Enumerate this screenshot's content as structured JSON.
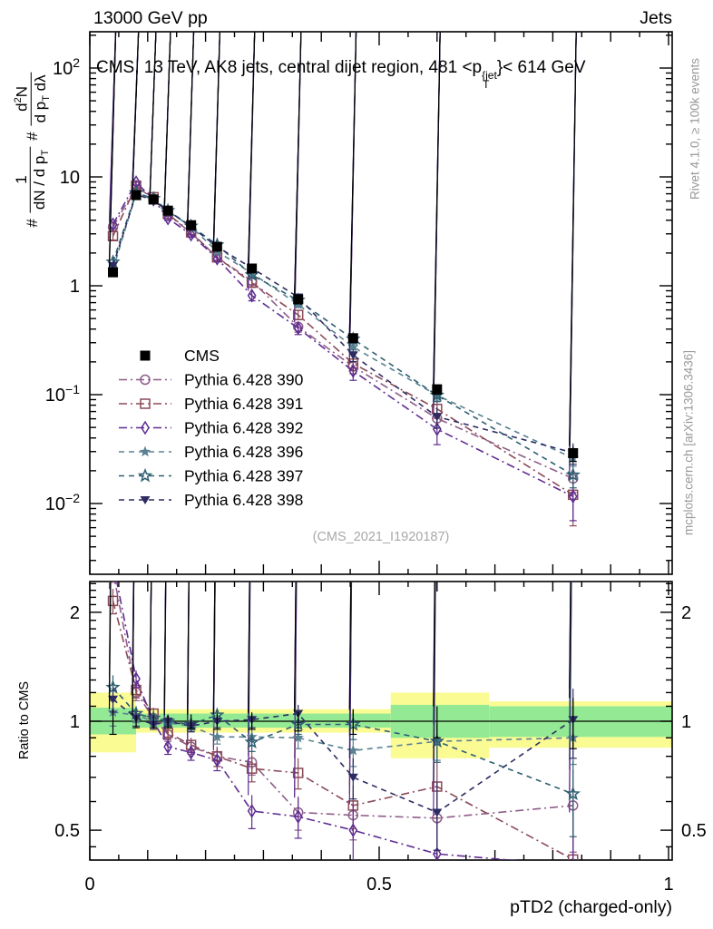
{
  "header": {
    "left": "13000 GeV pp",
    "right": "Jets"
  },
  "title": {
    "prefix": "CMS, 13 TeV, AK8 jets, central dijet region, 481 <p",
    "sup": "{jet",
    "sub": "T",
    "suffix": "}< 614 GeV"
  },
  "ylabel": {
    "hash1": "#",
    "f1_num": "1",
    "f1_den_a": "dN / d p",
    "f1_den_sub": "T",
    "hash2": "#",
    "f2_num_a": "d",
    "f2_num_sup": "2",
    "f2_num_b": "N",
    "f2_den_a": "d p",
    "f2_den_sub": "T",
    "f2_den_b": " dλ"
  },
  "labels": {
    "ratio_y": "Ratio to CMS",
    "x_axis": "pTD2 (charged-only)"
  },
  "notes": {
    "rivet": "Rivet 4.1.0, ≥ 100k events",
    "mcplots": "mcplots.cern.ch [arXiv:1306.3436]"
  },
  "watermark": "(CMS_2021_I1920187)",
  "colors": {
    "band_yellow": "#fbfb94",
    "band_green": "#94ea94",
    "frame": "#000000",
    "gray_text": "#999999"
  },
  "chart_data": {
    "type": "line",
    "title": "CMS, 13 TeV, AK8 jets, central dijet region, 481 < pT{jet} < 614 GeV",
    "xlabel": "pTD2 (charged-only)",
    "ylabel": "# 1/(dN/dpT) # d2N/(dpT dlambda)",
    "ratio_ylabel": "Ratio to CMS",
    "x_range": [
      0,
      1
    ],
    "main_y_log_range": [
      0.0022,
      215
    ],
    "ratio_y_log_range": [
      0.414,
      2.43
    ],
    "grid": false,
    "legend_position": "left-middle",
    "x": [
      0.04,
      0.08,
      0.11,
      0.135,
      0.175,
      0.22,
      0.28,
      0.36,
      0.455,
      0.6,
      0.835
    ],
    "cms": {
      "name": "CMS",
      "marker": "square-filled",
      "color": "#000000",
      "values": [
        1.33,
        6.8,
        6.2,
        4.9,
        3.6,
        2.28,
        1.44,
        0.75,
        0.33,
        0.112,
        0.029
      ],
      "err_rel": [
        0.08,
        0.04,
        0.04,
        0.04,
        0.045,
        0.05,
        0.05,
        0.06,
        0.08,
        0.1,
        0.16
      ]
    },
    "series": [
      {
        "name": "Pythia 6.428 390",
        "marker": "circle-open",
        "dash": "dashdot",
        "color": "#8e5d88",
        "ratio": [
          2.6,
          1.2,
          1.02,
          0.92,
          0.85,
          0.8,
          0.77,
          0.56,
          0.55,
          0.54,
          0.585
        ],
        "ratio_err": [
          0.18,
          0.06,
          0.04,
          0.04,
          0.04,
          0.05,
          0.06,
          0.06,
          0.08,
          0.1,
          0.15
        ]
      },
      {
        "name": "Pythia 6.428 391",
        "marker": "square-open",
        "dash": "dashdot",
        "color": "#8a4a58",
        "ratio": [
          2.15,
          1.22,
          1.05,
          0.93,
          0.86,
          0.8,
          0.74,
          0.72,
          0.585,
          0.66,
          0.415
        ],
        "ratio_err": [
          0.17,
          0.06,
          0.04,
          0.04,
          0.04,
          0.05,
          0.06,
          0.07,
          0.08,
          0.12,
          0.2
        ]
      },
      {
        "name": "Pythia 6.428 392",
        "marker": "diamond-open",
        "dash": "dashdot",
        "color": "#5f2d91",
        "ratio": [
          2.75,
          1.31,
          1.0,
          0.85,
          0.82,
          0.78,
          0.565,
          0.545,
          0.5,
          0.43,
          0.4
        ],
        "ratio_err": [
          0.2,
          0.07,
          0.04,
          0.04,
          0.04,
          0.05,
          0.06,
          0.07,
          0.09,
          0.12,
          0.16
        ]
      },
      {
        "name": "Pythia 6.428 396",
        "marker": "star-filled",
        "dash": "dashed",
        "color": "#5a8191",
        "ratio": [
          1.06,
          1.04,
          1.0,
          0.99,
          0.97,
          0.905,
          0.905,
          0.9,
          0.83,
          0.88,
          0.9
        ],
        "ratio_err": [
          0.09,
          0.05,
          0.03,
          0.03,
          0.035,
          0.04,
          0.05,
          0.06,
          0.08,
          0.1,
          0.14
        ]
      },
      {
        "name": "Pythia 6.428 397",
        "marker": "star-open",
        "dash": "dashed",
        "color": "#2e5f70",
        "ratio": [
          1.24,
          1.05,
          1.02,
          1.0,
          0.98,
          1.04,
          0.875,
          0.98,
          0.98,
          0.88,
          0.63
        ],
        "ratio_err": [
          0.1,
          0.05,
          0.035,
          0.03,
          0.035,
          0.045,
          0.05,
          0.06,
          0.09,
          0.11,
          0.15
        ]
      },
      {
        "name": "Pythia 6.428 398",
        "marker": "triangle-down-filled",
        "dash": "dashed",
        "color": "#2c2c62",
        "ratio": [
          1.15,
          1.02,
          0.98,
          1.0,
          0.97,
          1.0,
          1.01,
          1.05,
          0.7,
          0.56,
          1.01
        ],
        "ratio_err": [
          0.09,
          0.05,
          0.03,
          0.03,
          0.035,
          0.04,
          0.05,
          0.06,
          0.09,
          0.12,
          0.22
        ]
      }
    ],
    "bands": [
      {
        "x0": 0.0,
        "x1": 0.08,
        "yellow": [
          0.82,
          1.2
        ],
        "green": [
          0.92,
          1.09
        ]
      },
      {
        "x0": 0.08,
        "x1": 0.52,
        "yellow": [
          0.93,
          1.08
        ],
        "green": [
          0.96,
          1.05
        ]
      },
      {
        "x0": 0.52,
        "x1": 0.69,
        "yellow": [
          0.79,
          1.2
        ],
        "green": [
          0.9,
          1.11
        ]
      },
      {
        "x0": 0.69,
        "x1": 1.0,
        "yellow": [
          0.845,
          1.135
        ],
        "green": [
          0.905,
          1.1
        ]
      }
    ],
    "axes": {
      "x_ticks_labeled": [
        {
          "v": 0,
          "label": "0"
        },
        {
          "v": 0.5,
          "label": "0.5"
        },
        {
          "v": 1,
          "label": "1"
        }
      ],
      "main_y_ticks": [
        {
          "v": 100,
          "mant": "10",
          "exp": "2"
        },
        {
          "v": 10,
          "mant": "10",
          "exp": ""
        },
        {
          "v": 1,
          "mant": "1",
          "exp": ""
        },
        {
          "v": 0.1,
          "mant": "10",
          "exp": "−1"
        },
        {
          "v": 0.01,
          "mant": "10",
          "exp": "−2"
        }
      ],
      "ratio_y_ticks": [
        {
          "v": 2,
          "label": "2"
        },
        {
          "v": 1,
          "label": "1"
        },
        {
          "v": 0.5,
          "label": "0.5"
        }
      ]
    }
  }
}
